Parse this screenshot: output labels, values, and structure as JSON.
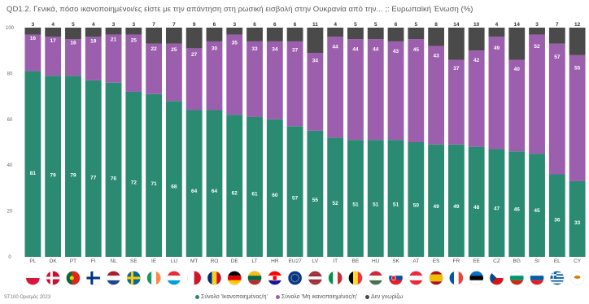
{
  "chart_data": {
    "type": "bar",
    "stacked": true,
    "title": "QD1.2. Γενικά, πόσο ικανοποιημένοι/ες είστε με την απάντηση στη ρωσική εισβολή στην Ουκρανία από την... ;: Ευρωπαϊκή Ένωση (%)",
    "categories": [
      "PL",
      "DK",
      "PT",
      "FI",
      "NL",
      "SE",
      "IE",
      "LU",
      "MT",
      "RO",
      "DE",
      "LT",
      "HR",
      "EU27",
      "LV",
      "IT",
      "BE",
      "HU",
      "SK",
      "AT",
      "ES",
      "FR",
      "EE",
      "CZ",
      "BG",
      "SI",
      "EL",
      "CY"
    ],
    "series": [
      {
        "name": "Σύνολο 'Ικανοποιημένος/η'",
        "color": "#2a8a72",
        "values": [
          81,
          79,
          79,
          77,
          76,
          72,
          71,
          68,
          64,
          64,
          62,
          61,
          60,
          57,
          55,
          52,
          51,
          51,
          51,
          50,
          49,
          49,
          48,
          47,
          46,
          45,
          36,
          33
        ]
      },
      {
        "name": "Σύνολο 'Μη ικανοποιημένος/η'",
        "color": "#9b5fae",
        "values": [
          16,
          17,
          16,
          19,
          21,
          25,
          22,
          25,
          27,
          30,
          35,
          33,
          34,
          37,
          34,
          44,
          44,
          44,
          43,
          45,
          43,
          37,
          42,
          49,
          40,
          52,
          57,
          55
        ]
      },
      {
        "name": "Δεν γνωρίζω",
        "color": "#4a4a4a",
        "values": [
          3,
          4,
          5,
          4,
          3,
          3,
          7,
          7,
          9,
          6,
          3,
          6,
          6,
          6,
          11,
          4,
          5,
          5,
          6,
          5,
          8,
          14,
          10,
          4,
          14,
          3,
          7,
          12
        ]
      }
    ],
    "ylim": [
      0,
      100
    ],
    "yticks": [
      0,
      20,
      40,
      60,
      80,
      100
    ],
    "legend_position": "bottom",
    "flags": [
      "pl",
      "dk",
      "pt",
      "fi",
      "nl",
      "se",
      "ie",
      "lu",
      "mt",
      "ro",
      "de",
      "lt",
      "hr",
      "eu",
      "lv",
      "it",
      "be",
      "hu",
      "sk",
      "at",
      "es",
      "fr",
      "ee",
      "cz",
      "bg",
      "si",
      "el",
      "cy"
    ]
  },
  "footer": {
    "source": "ST100 Ορισμός 2023"
  }
}
